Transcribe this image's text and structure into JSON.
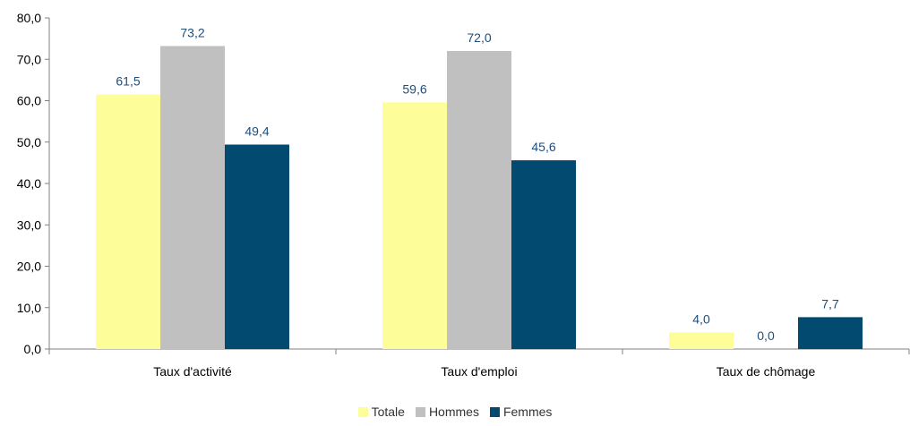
{
  "chart_data": {
    "type": "bar",
    "categories": [
      "Taux d'activité",
      "Taux d'emploi",
      "Taux de chômage"
    ],
    "series": [
      {
        "name": "Totale",
        "values": [
          61.5,
          59.6,
          4.0
        ],
        "labels": [
          "61,5",
          "59,6",
          "4,0"
        ],
        "color": "#fdfd9a"
      },
      {
        "name": "Hommes",
        "values": [
          73.2,
          72.0,
          0.0
        ],
        "labels": [
          "73,2",
          "72,0",
          "0,0"
        ],
        "color": "#c0c0c0"
      },
      {
        "name": "Femmes",
        "values": [
          49.4,
          45.6,
          7.7
        ],
        "labels": [
          "49,4",
          "45,6",
          "7,7"
        ],
        "color": "#024a6f"
      }
    ],
    "ylim": [
      0,
      80
    ],
    "yticks": [
      "0,0",
      "10,0",
      "20,0",
      "30,0",
      "40,0",
      "50,0",
      "60,0",
      "70,0",
      "80,0"
    ],
    "grid": false,
    "legend_position": "bottom",
    "data_label_color": "#1f4e79"
  }
}
